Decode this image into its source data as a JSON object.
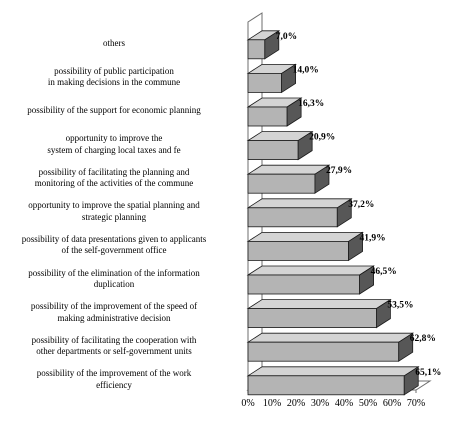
{
  "chart_data": {
    "type": "bar",
    "orientation": "horizontal",
    "style": "3d",
    "categories": [
      "others",
      "possibility of public participation in making decisions in the commune",
      "possibility of the support for economic planning",
      "opportunity to improve the system of charging local taxes and fe",
      "possibility of facilitating the planning and monitoring of the activities of the commune",
      "opportunity to improve the spatial planning and strategic planning",
      "possibility of data presentations given to applicants of the self-government office",
      "possibility of the elimination of the information duplication",
      "possibility of the improvement of the speed of making administrative decision",
      "possibility of facilitating  the cooperation with other departments or self-government units",
      "possibility of the improvement of the work efficiency"
    ],
    "category_lines": [
      [
        "others"
      ],
      [
        "possibility of public participation",
        "in making decisions in the commune"
      ],
      [
        "possibility of the support for economic planning"
      ],
      [
        "opportunity to improve the",
        "system of charging local taxes and fe"
      ],
      [
        "possibility of facilitating the planning and",
        "monitoring of the activities of the commune"
      ],
      [
        "opportunity to improve the spatial planning and",
        "strategic planning"
      ],
      [
        "possibility of data presentations given to applicants",
        "of the self-government office"
      ],
      [
        "possibility of the elimination of the information",
        "duplication"
      ],
      [
        "possibility of the improvement of the speed of",
        "making administrative decision"
      ],
      [
        "possibility of facilitating  the cooperation with",
        "other departments or self-government units"
      ],
      [
        "possibility of the improvement of the work",
        "efficiency"
      ]
    ],
    "values": [
      7.0,
      14.0,
      16.3,
      20.9,
      27.9,
      37.2,
      41.9,
      46.5,
      53.5,
      62.8,
      65.1
    ],
    "value_labels": [
      "7,0%",
      "14,0%",
      "16,3%",
      "20,9%",
      "27,9%",
      "37,2%",
      "41,9%",
      "46,5%",
      "53,5%",
      "62,8%",
      "65,1%"
    ],
    "xlim": [
      0,
      70
    ],
    "x_ticks": [
      "0%",
      "10%",
      "20%",
      "30%",
      "40%",
      "50%",
      "60%",
      "70%"
    ],
    "grid": false,
    "legend": "none",
    "colors": {
      "bar_front": "#b4b4b4",
      "bar_top": "#d4d4d4",
      "bar_end": "#575757",
      "bar_outline": "#1a1a1a",
      "wall": "#ffffff",
      "wall_outline": "#6e6e6e"
    }
  }
}
